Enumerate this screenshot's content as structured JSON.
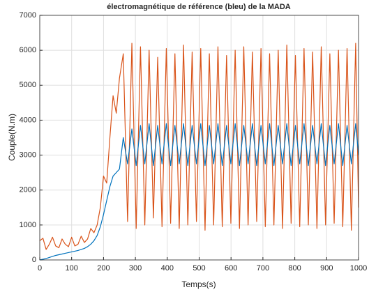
{
  "chart_data": {
    "type": "line",
    "title": "électromagnétique de référence (bleu) de la MADA",
    "xlabel": "Temps(s)",
    "ylabel": "Couple(N.m)",
    "xlim": [
      0,
      1000
    ],
    "xticks": [
      0,
      100,
      200,
      300,
      400,
      500,
      600,
      700,
      800,
      900,
      1000
    ],
    "ylim": [
      0,
      7000
    ],
    "yticks": [
      0,
      1000,
      2000,
      3000,
      4000,
      5000,
      6000,
      7000
    ],
    "grid": true,
    "x": [
      0,
      10,
      20,
      30,
      40,
      50,
      60,
      70,
      80,
      90,
      100,
      110,
      120,
      130,
      140,
      150,
      160,
      170,
      180,
      190,
      200,
      210,
      220,
      230,
      240,
      250,
      262,
      275.5,
      289,
      302.5,
      316,
      329.5,
      343,
      356.5,
      370,
      383.5,
      397,
      410.5,
      424,
      437.5,
      451,
      464.5,
      478,
      491.5,
      505,
      518.5,
      532,
      545.5,
      559,
      572.5,
      586,
      599.5,
      613,
      626.5,
      640,
      653.5,
      667,
      680.5,
      694,
      707.5,
      721,
      734.5,
      748,
      761.5,
      775,
      788.5,
      802,
      815.5,
      829,
      842.5,
      856,
      869.5,
      883,
      896.5,
      910,
      923.5,
      937,
      950.5,
      964,
      977.5,
      991,
      1000
    ],
    "series": [
      {
        "name": "Couple",
        "color": "#d95319",
        "values": [
          550,
          620,
          300,
          450,
          650,
          400,
          350,
          600,
          450,
          380,
          650,
          400,
          450,
          680,
          500,
          600,
          900,
          780,
          1000,
          1500,
          2400,
          2200,
          3500,
          4700,
          4200,
          5200,
          5900,
          1100,
          6200,
          900,
          6100,
          1000,
          6000,
          1200,
          5800,
          950,
          6050,
          1050,
          5900,
          900,
          6150,
          1000,
          5950,
          1100,
          6050,
          850,
          5900,
          1000,
          6100,
          950,
          5850,
          1050,
          6000,
          900,
          6100,
          1000,
          5950,
          1100,
          6050,
          950,
          5900,
          1000,
          6000,
          900,
          6150,
          1050,
          5850,
          950,
          6050,
          1000,
          5950,
          900,
          6100,
          1000,
          5900,
          1050,
          6000,
          950,
          6050,
          850,
          6200,
          1500
        ]
      },
      {
        "name": "Référence",
        "color": "#0072bd",
        "values": [
          0,
          20,
          40,
          70,
          100,
          130,
          150,
          170,
          190,
          210,
          230,
          250,
          270,
          300,
          330,
          380,
          450,
          550,
          700,
          950,
          1300,
          1700,
          2100,
          2400,
          2500,
          2600,
          3500,
          2750,
          3750,
          2700,
          3850,
          2750,
          3900,
          2700,
          3850,
          2750,
          3900,
          2700,
          3850,
          2750,
          3900,
          2700,
          3850,
          2750,
          3900,
          2700,
          3850,
          2750,
          3900,
          2700,
          3850,
          2750,
          3900,
          2700,
          3850,
          2750,
          3900,
          2700,
          3850,
          2750,
          3900,
          2700,
          3850,
          2750,
          3900,
          2700,
          3850,
          2750,
          3900,
          2700,
          3850,
          2750,
          3900,
          2700,
          3850,
          2750,
          3900,
          2700,
          3850,
          2750,
          3900,
          3000
        ]
      }
    ]
  }
}
